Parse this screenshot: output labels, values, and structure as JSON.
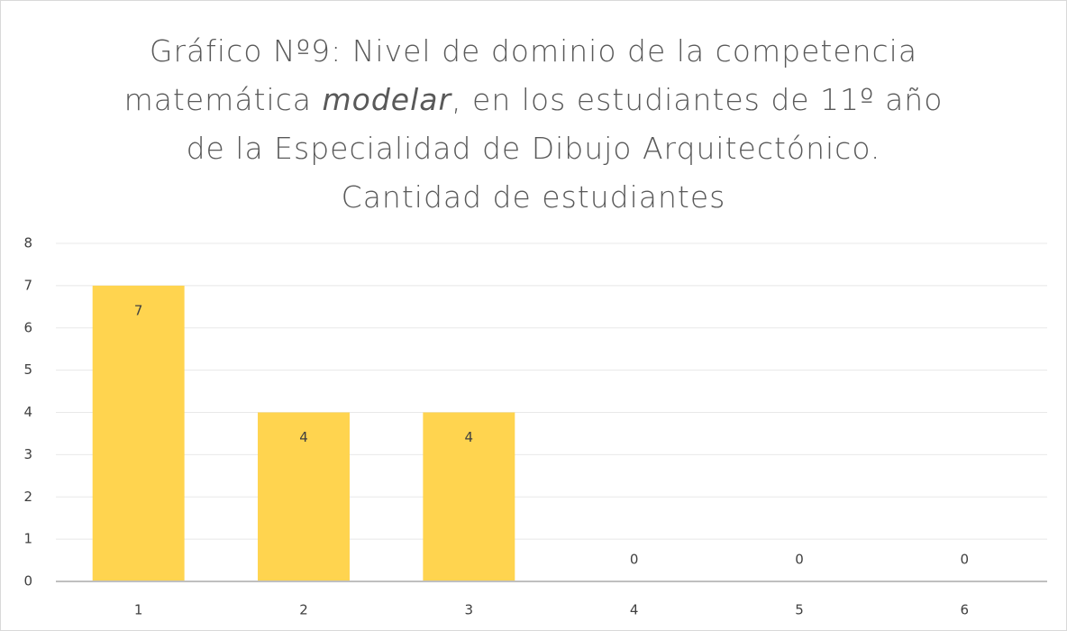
{
  "chart_data": {
    "type": "bar",
    "title": [
      "Gráfico Nº9: Nivel de dominio de la competencia matemática ",
      "modelar",
      ", en los estudiantes de 11º año de la Especialidad de Dibujo Arquitectónico. Cantidad de estudiantes"
    ],
    "categories": [
      "1",
      "2",
      "3",
      "4",
      "5",
      "6"
    ],
    "values": [
      7,
      4,
      4,
      0,
      0,
      0
    ],
    "color": "#ffd44f",
    "ylim": [
      0,
      8
    ],
    "yticks": [
      0,
      1,
      2,
      3,
      4,
      5,
      6,
      7,
      8
    ],
    "grid": true
  }
}
